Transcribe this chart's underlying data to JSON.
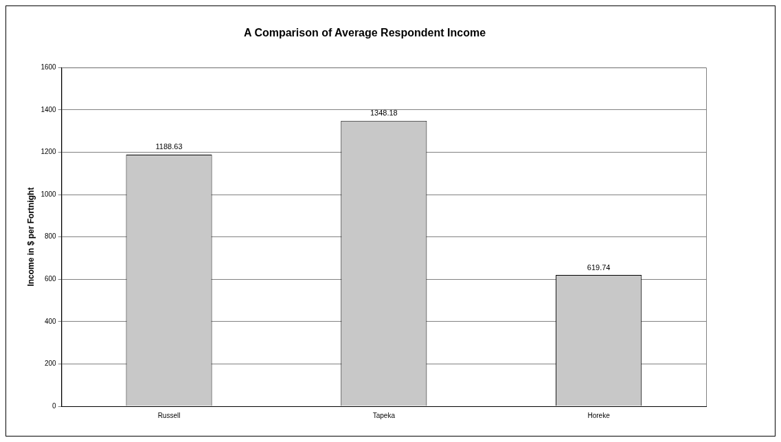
{
  "chart_data": {
    "type": "bar",
    "title": "A Comparison of Average Respondent Income",
    "ylabel": "Income in $ per Fortnight",
    "categories": [
      "Russell",
      "Tapeka",
      "Horeke"
    ],
    "values": [
      1188.63,
      1348.18,
      619.74
    ],
    "color": "#c8c8c8",
    "ylim": [
      0,
      1600
    ],
    "yticks": [
      0,
      200,
      400,
      600,
      800,
      1000,
      1200,
      1400,
      1600
    ],
    "grid": "y",
    "data_labels": true
  }
}
